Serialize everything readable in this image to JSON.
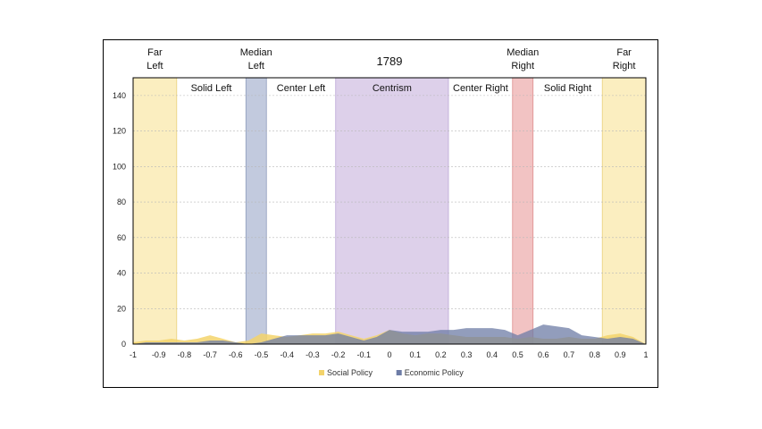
{
  "chart_data": {
    "type": "area",
    "title": "1789",
    "xlabel": "",
    "ylabel": "",
    "xlim": [
      -1,
      1
    ],
    "ylim": [
      0,
      150
    ],
    "xticks": [
      "-1",
      "-0.9",
      "-0.8",
      "-0.7",
      "-0.6",
      "-0.5",
      "-0.4",
      "-0.3",
      "-0.2",
      "-0.1",
      "0",
      "0.1",
      "0.2",
      "0.3",
      "0.4",
      "0.5",
      "0.6",
      "0.7",
      "0.8",
      "0.9",
      "1"
    ],
    "yticks": [
      "0",
      "20",
      "40",
      "60",
      "80",
      "100",
      "120",
      "140"
    ],
    "grid": true,
    "legend_position": "bottom",
    "bands": [
      {
        "label": "Far Left",
        "lines": [
          "Far",
          "Left"
        ],
        "from": -1.0,
        "to": -0.83,
        "color": "#fbeec0",
        "edge": "#e9d27a",
        "label_pos": "top"
      },
      {
        "label": "Solid Left",
        "lines": [
          "Solid Left"
        ],
        "from": -0.83,
        "to": -0.56,
        "color": "",
        "edge": "",
        "label_pos": "inside"
      },
      {
        "label": "Median Left",
        "lines": [
          "Median",
          "Left"
        ],
        "from": -0.56,
        "to": -0.48,
        "color": "#c2cade",
        "edge": "#8e9bbb",
        "label_pos": "top"
      },
      {
        "label": "Center Left",
        "lines": [
          "Center Left"
        ],
        "from": -0.48,
        "to": -0.21,
        "color": "",
        "edge": "",
        "label_pos": "inside"
      },
      {
        "label": "Centrism",
        "lines": [
          "Centrism"
        ],
        "from": -0.21,
        "to": 0.23,
        "color": "#ddd0ea",
        "edge": "#bba8d6",
        "label_pos": "inside"
      },
      {
        "label": "Center Right",
        "lines": [
          "Center Right"
        ],
        "from": 0.23,
        "to": 0.48,
        "color": "",
        "edge": "",
        "label_pos": "inside"
      },
      {
        "label": "Median Right",
        "lines": [
          "Median",
          "Right"
        ],
        "from": 0.48,
        "to": 0.56,
        "color": "#f2c3c3",
        "edge": "#de8f8f",
        "label_pos": "top"
      },
      {
        "label": "Solid Right",
        "lines": [
          "Solid Right"
        ],
        "from": 0.56,
        "to": 0.83,
        "color": "",
        "edge": "",
        "label_pos": "inside"
      },
      {
        "label": "Far Right",
        "lines": [
          "Far",
          "Right"
        ],
        "from": 0.83,
        "to": 1.0,
        "color": "#fbeec0",
        "edge": "#e9d27a",
        "label_pos": "top"
      }
    ],
    "series": [
      {
        "name": "Social Policy",
        "color": "#f3d36b",
        "x": [
          -1,
          -0.95,
          -0.9,
          -0.85,
          -0.8,
          -0.75,
          -0.7,
          -0.65,
          -0.6,
          -0.55,
          -0.5,
          -0.45,
          -0.4,
          -0.35,
          -0.3,
          -0.25,
          -0.2,
          -0.15,
          -0.1,
          -0.05,
          0,
          0.05,
          0.1,
          0.15,
          0.2,
          0.25,
          0.3,
          0.35,
          0.4,
          0.45,
          0.5,
          0.55,
          0.6,
          0.65,
          0.7,
          0.75,
          0.8,
          0.85,
          0.9,
          0.95,
          1
        ],
        "values": [
          1,
          2,
          2,
          3,
          2,
          3,
          5,
          3,
          1,
          2,
          6,
          5,
          4,
          5,
          6,
          6,
          7,
          5,
          3,
          5,
          8,
          6,
          5,
          6,
          6,
          5,
          4,
          4,
          4,
          4,
          3,
          4,
          3,
          3,
          4,
          3,
          3,
          5,
          6,
          4,
          0
        ]
      },
      {
        "name": "Economic Policy",
        "color": "#6d7ca6",
        "x": [
          -1,
          -0.95,
          -0.9,
          -0.85,
          -0.8,
          -0.75,
          -0.7,
          -0.65,
          -0.6,
          -0.55,
          -0.5,
          -0.45,
          -0.4,
          -0.35,
          -0.3,
          -0.25,
          -0.2,
          -0.15,
          -0.1,
          -0.05,
          0,
          0.05,
          0.1,
          0.15,
          0.2,
          0.25,
          0.3,
          0.35,
          0.4,
          0.45,
          0.5,
          0.55,
          0.6,
          0.65,
          0.7,
          0.75,
          0.8,
          0.85,
          0.9,
          0.95,
          1
        ],
        "values": [
          0,
          1,
          1,
          1,
          1,
          1,
          2,
          2,
          1,
          0,
          1,
          3,
          5,
          5,
          5,
          5,
          6,
          4,
          2,
          4,
          8,
          7,
          7,
          7,
          8,
          8,
          9,
          9,
          9,
          8,
          5,
          8,
          11,
          10,
          9,
          5,
          4,
          3,
          4,
          3,
          0
        ]
      }
    ]
  }
}
